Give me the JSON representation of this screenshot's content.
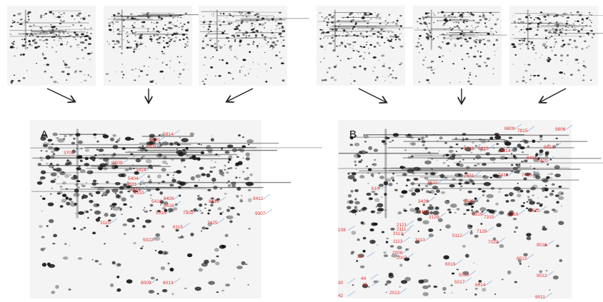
{
  "panels": [
    {
      "letter": "A",
      "labels": [
        "5814",
        "4820",
        "4808",
        "3705",
        "3509",
        "3414",
        "5404",
        "4511",
        "4514",
        "4510",
        "6426",
        "5418",
        "6416",
        "5316",
        "7302",
        "8415",
        "3115",
        "5022",
        "6115",
        "8009",
        "6013",
        "9412",
        "9307",
        "7425"
      ]
    },
    {
      "letter": "B",
      "labels": [
        "6809",
        "7815",
        "9806",
        "6721",
        "6810",
        "8814",
        "8812",
        "8419",
        "8420",
        "7631",
        "7412",
        "7413",
        "610",
        "3532",
        "6425",
        "3428",
        "3119",
        "3129",
        "6319",
        "7315",
        "8318",
        "9312",
        "2121",
        "2111",
        "3113",
        "1113",
        "3110",
        "5112",
        "7128",
        "7020",
        "9018",
        "8012",
        "108",
        "2008",
        "2007",
        "26",
        "6019",
        "5016",
        "5017",
        "6014",
        "9012",
        "30",
        "44",
        "45",
        "42",
        "2012",
        "9011"
      ]
    }
  ],
  "colors": {
    "label": "#e0302a",
    "leader": "#7aa6d6",
    "arrow": "#222222"
  }
}
